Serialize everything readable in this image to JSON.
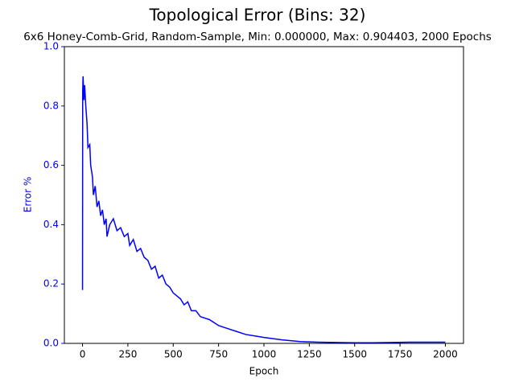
{
  "chart_data": {
    "type": "line",
    "title": "Topological Error (Bins: 32)",
    "subtitle": "6x6 Honey-Comb-Grid, Random-Sample, Min: 0.000000, Max: 0.904403, 2000 Epochs",
    "xlabel": "Epoch",
    "ylabel": "Error %",
    "x": [
      0,
      1,
      3,
      8,
      12,
      18,
      25,
      30,
      40,
      45,
      55,
      60,
      70,
      80,
      90,
      100,
      110,
      120,
      130,
      135,
      150,
      170,
      190,
      210,
      230,
      250,
      260,
      280,
      300,
      320,
      340,
      360,
      380,
      400,
      420,
      440,
      460,
      480,
      500,
      520,
      540,
      560,
      580,
      600,
      625,
      650,
      700,
      750,
      800,
      850,
      900,
      950,
      1000,
      1100,
      1200,
      1300,
      1400,
      1500,
      1600,
      1700,
      1800,
      1900,
      2000
    ],
    "series": [
      {
        "name": "Topological Error",
        "color": "#0000ff",
        "values": [
          0.18,
          0.85,
          0.9,
          0.82,
          0.87,
          0.8,
          0.74,
          0.66,
          0.67,
          0.6,
          0.56,
          0.5,
          0.53,
          0.46,
          0.48,
          0.43,
          0.45,
          0.4,
          0.42,
          0.36,
          0.4,
          0.42,
          0.38,
          0.39,
          0.36,
          0.37,
          0.33,
          0.35,
          0.31,
          0.32,
          0.29,
          0.28,
          0.25,
          0.26,
          0.22,
          0.23,
          0.2,
          0.19,
          0.17,
          0.16,
          0.15,
          0.13,
          0.14,
          0.11,
          0.11,
          0.09,
          0.08,
          0.06,
          0.05,
          0.04,
          0.03,
          0.025,
          0.02,
          0.012,
          0.006,
          0.004,
          0.003,
          0.002,
          0.002,
          0.003,
          0.004,
          0.004,
          0.004
        ]
      }
    ],
    "xlim": [
      -100,
      2100
    ],
    "xticks": [
      0,
      250,
      500,
      750,
      1000,
      1250,
      1500,
      1750,
      2000
    ],
    "ylim": [
      0,
      1
    ],
    "yticks": [
      {
        "value": 0,
        "label": "0.0"
      },
      0.2,
      0.4,
      0.6,
      0.8,
      {
        "value": 1,
        "label": "1.0"
      }
    ],
    "axis_color": "#0000ff"
  }
}
